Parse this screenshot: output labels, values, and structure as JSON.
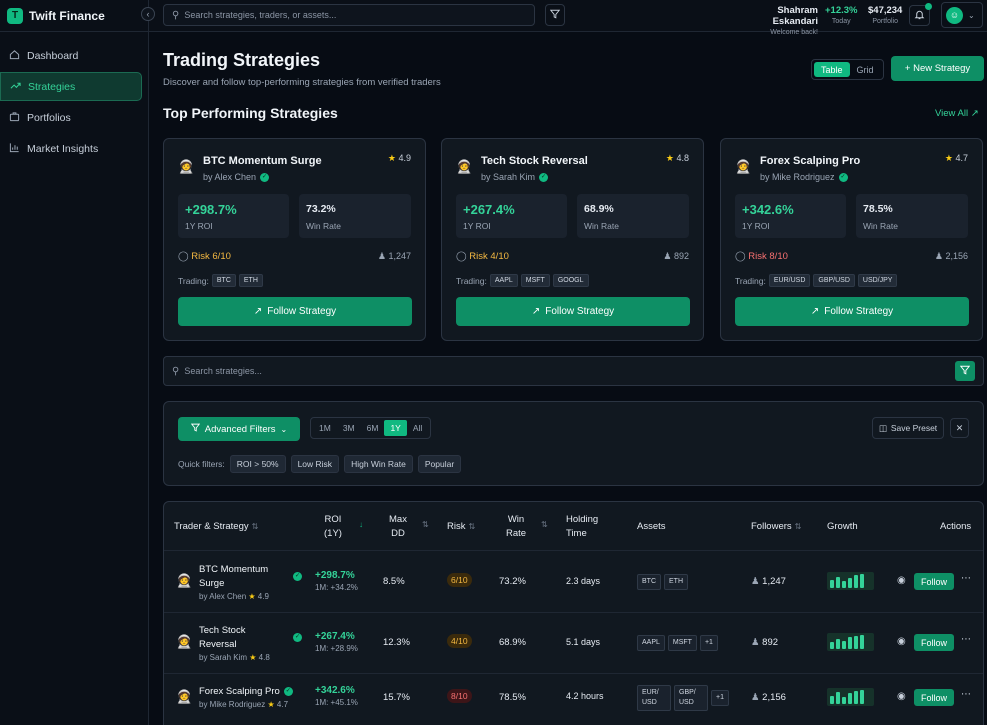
{
  "brand": {
    "name": "Twift Finance",
    "logo_letter": "T"
  },
  "sidebar": {
    "items": [
      {
        "label": "Dashboard",
        "icon": "home-icon",
        "active": false
      },
      {
        "label": "Strategies",
        "icon": "trend-up-icon",
        "active": true
      },
      {
        "label": "Portfolios",
        "icon": "briefcase-icon",
        "active": false
      },
      {
        "label": "Market Insights",
        "icon": "bar-chart-icon",
        "active": false
      }
    ]
  },
  "topbar": {
    "search_placeholder": "Search strategies, traders, or assets...",
    "user_name": "Shahram Eskandari",
    "welcome": "Welcome back!",
    "today_value": "+12.3%",
    "today_label": "Today",
    "portfolio_value": "$47,234",
    "portfolio_label": "Portfolio",
    "avatar_glyph": "☺"
  },
  "page": {
    "title": "Trading Strategies",
    "subtitle": "Discover and follow top-performing strategies from verified traders",
    "view_table": "Table",
    "view_grid": "Grid",
    "new_strategy": "+ New Strategy"
  },
  "top": {
    "title": "Top Performing Strategies",
    "view_all": "View All ↗",
    "cards": [
      {
        "name": "BTC Momentum Surge",
        "author": "by Alex Chen",
        "rating": "4.9",
        "roi": "+298.7%",
        "roi_label": "1Y ROI",
        "win": "73.2%",
        "win_label": "Win Rate",
        "risk": "Risk 6/10",
        "risk_color": "#f5b942",
        "followers": "1,247",
        "trading_label": "Trading:",
        "tags": [
          "BTC",
          "ETH"
        ],
        "follow": "Follow Strategy"
      },
      {
        "name": "Tech Stock Reversal",
        "author": "by Sarah Kim",
        "rating": "4.8",
        "roi": "+267.4%",
        "roi_label": "1Y ROI",
        "win": "68.9%",
        "win_label": "Win Rate",
        "risk": "Risk 4/10",
        "risk_color": "#f5b942",
        "followers": "892",
        "trading_label": "Trading:",
        "tags": [
          "AAPL",
          "MSFT",
          "GOOGL"
        ],
        "follow": "Follow Strategy"
      },
      {
        "name": "Forex Scalping Pro",
        "author": "by Mike Rodriguez",
        "rating": "4.7",
        "roi": "+342.6%",
        "roi_label": "1Y ROI",
        "win": "78.5%",
        "win_label": "Win Rate",
        "risk": "Risk 8/10",
        "risk_color": "#f87171",
        "followers": "2,156",
        "trading_label": "Trading:",
        "tags": [
          "EUR/USD",
          "GBP/USD",
          "USD/JPY"
        ],
        "follow": "Follow Strategy"
      }
    ]
  },
  "search2": {
    "placeholder": "Search strategies..."
  },
  "filters": {
    "advanced": "Advanced Filters",
    "periods": [
      "1M",
      "3M",
      "6M",
      "1Y",
      "All"
    ],
    "active_period": "1Y",
    "save_preset": "Save Preset",
    "quick_label": "Quick filters:",
    "quick": [
      "ROI > 50%",
      "Low Risk",
      "High Win Rate",
      "Popular"
    ]
  },
  "table": {
    "headers": {
      "trader": "Trader & Strategy",
      "roi1": "ROI",
      "roi2": "(1Y)",
      "dd1": "Max",
      "dd2": "DD",
      "risk": "Risk",
      "win1": "Win",
      "win2": "Rate",
      "hold1": "Holding",
      "hold2": "Time",
      "assets": "Assets",
      "followers": "Followers",
      "growth": "Growth",
      "actions": "Actions"
    },
    "rows": [
      {
        "name1": "BTC Momentum",
        "name2": "Surge",
        "author": "by Alex Chen",
        "rating": "4.9",
        "roi": "+298.7%",
        "roi_m": "1M: +34.2%",
        "dd": "8.5%",
        "risk": "6/10",
        "risk_bg": "#3a2a0c",
        "risk_color": "#f5b942",
        "win": "73.2%",
        "hold": "2.3 days",
        "assets": [
          "BTC",
          "ETH"
        ],
        "followers": "1,247",
        "growth": [
          8,
          11,
          7,
          10,
          13,
          14
        ],
        "follow": "Follow"
      },
      {
        "name1": "Tech Stock",
        "name2": "Reversal",
        "author": "by Sarah Kim",
        "rating": "4.8",
        "roi": "+267.4%",
        "roi_m": "1M: +28.9%",
        "dd": "12.3%",
        "risk": "4/10",
        "risk_bg": "#3a2a0c",
        "risk_color": "#f5b942",
        "win": "68.9%",
        "hold": "5.1 days",
        "assets": [
          "AAPL",
          "MSFT",
          "+1"
        ],
        "followers": "892",
        "growth": [
          7,
          10,
          8,
          12,
          13,
          14
        ],
        "follow": "Follow"
      },
      {
        "name1": "Forex Scalping Pro",
        "name2": "",
        "author": "by Mike Rodriguez",
        "rating": "4.7",
        "roi": "+342.6%",
        "roi_m": "1M: +45.1%",
        "dd": "15.7%",
        "risk": "8/10",
        "risk_bg": "#3d1518",
        "risk_color": "#f87171",
        "win": "78.5%",
        "hold": "4.2 hours",
        "assets": [
          "EUR/ USD",
          "GBP/ USD",
          "+1"
        ],
        "followers": "2,156",
        "growth": [
          8,
          12,
          7,
          11,
          13,
          14
        ],
        "follow": "Follow"
      }
    ]
  }
}
